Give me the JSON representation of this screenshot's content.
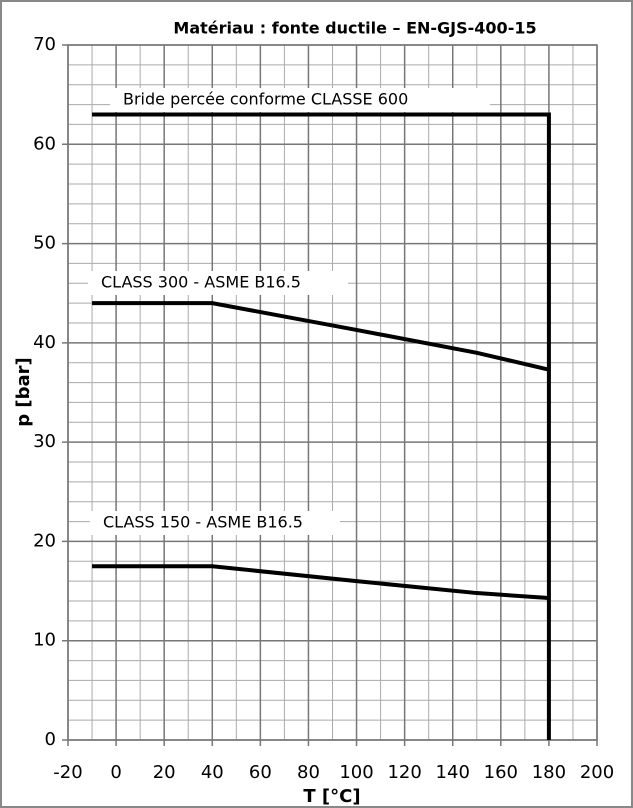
{
  "chart_data": {
    "type": "line",
    "title": "Matériau : fonte ductile – EN-GJS-400-15",
    "x_label": "T [°C]",
    "y_label": "p [bar]",
    "xlim": [
      -20,
      200
    ],
    "ylim": [
      0,
      70
    ],
    "xticks": [
      -20,
      0,
      20,
      40,
      60,
      80,
      100,
      120,
      140,
      160,
      180,
      200
    ],
    "yticks": [
      0,
      10,
      20,
      30,
      40,
      50,
      60,
      70
    ],
    "grid": true,
    "minor_grid": {
      "x": 2,
      "y": 5
    },
    "series": [
      {
        "name": "Bride percée conforme CLASSE 600",
        "color": "#000000",
        "x": [
          -10,
          180,
          180
        ],
        "values": [
          63,
          63,
          0
        ]
      },
      {
        "name": "CLASS 300 - ASME B16.5",
        "color": "#000000",
        "x": [
          -10,
          40,
          100,
          150,
          180
        ],
        "values": [
          44,
          44,
          41.3,
          39,
          37.3
        ]
      },
      {
        "name": "CLASS 150 - ASME B16.5",
        "color": "#000000",
        "x": [
          -10,
          40,
          100,
          150,
          180
        ],
        "values": [
          17.5,
          17.5,
          16,
          14.8,
          14.3
        ]
      }
    ]
  }
}
